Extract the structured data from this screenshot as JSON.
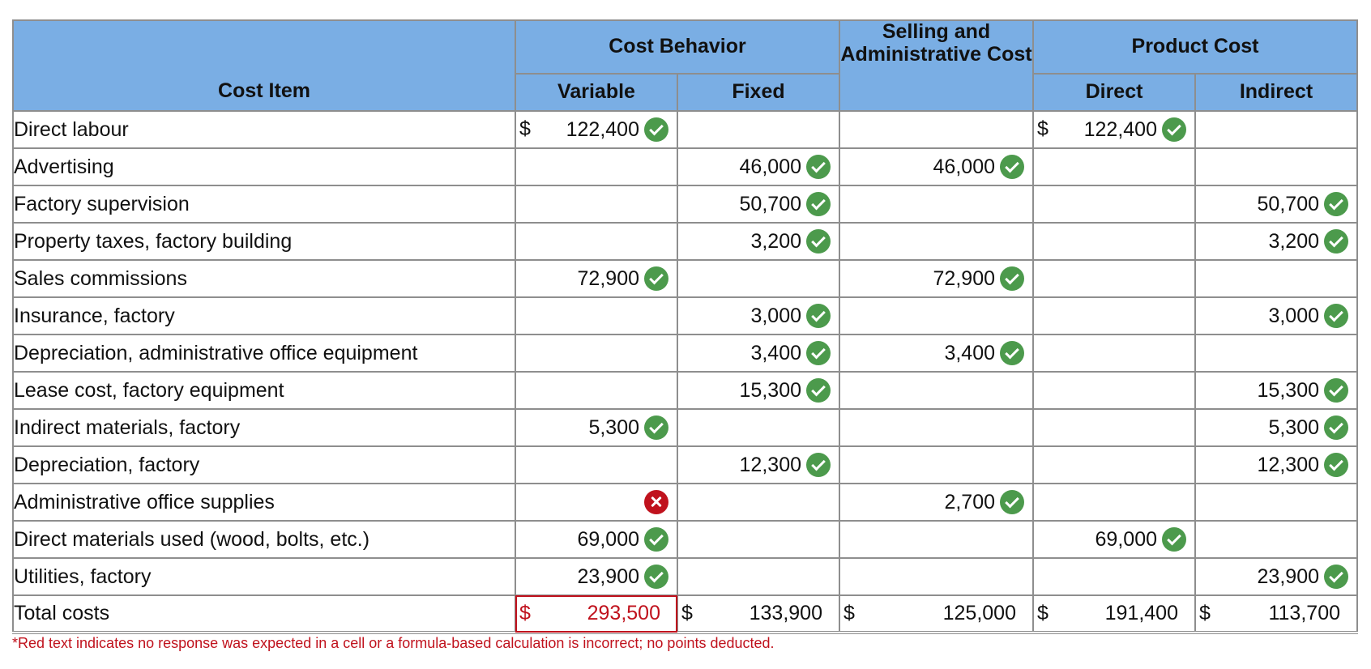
{
  "header": {
    "cost_item": "Cost Item",
    "cost_behavior": "Cost Behavior",
    "variable": "Variable",
    "fixed": "Fixed",
    "selling_admin": "Selling and Administrative Cost",
    "product_cost": "Product Cost",
    "direct": "Direct",
    "indirect": "Indirect"
  },
  "rows": [
    {
      "item": "Direct labour",
      "variable": {
        "value": "122,400",
        "currency": "$",
        "status": "correct"
      },
      "fixed": null,
      "sa": null,
      "direct": {
        "value": "122,400",
        "currency": "$",
        "status": "correct"
      },
      "indirect": null
    },
    {
      "item": "Advertising",
      "variable": null,
      "fixed": {
        "value": "46,000",
        "status": "correct"
      },
      "sa": {
        "value": "46,000",
        "status": "correct"
      },
      "direct": null,
      "indirect": null
    },
    {
      "item": "Factory supervision",
      "variable": null,
      "fixed": {
        "value": "50,700",
        "status": "correct"
      },
      "sa": null,
      "direct": null,
      "indirect": {
        "value": "50,700",
        "status": "correct"
      }
    },
    {
      "item": "Property taxes, factory building",
      "variable": null,
      "fixed": {
        "value": "3,200",
        "status": "correct"
      },
      "sa": null,
      "direct": null,
      "indirect": {
        "value": "3,200",
        "status": "correct"
      }
    },
    {
      "item": "Sales commissions",
      "variable": {
        "value": "72,900",
        "status": "correct"
      },
      "fixed": null,
      "sa": {
        "value": "72,900",
        "status": "correct"
      },
      "direct": null,
      "indirect": null
    },
    {
      "item": "Insurance, factory",
      "variable": null,
      "fixed": {
        "value": "3,000",
        "status": "correct"
      },
      "sa": null,
      "direct": null,
      "indirect": {
        "value": "3,000",
        "status": "correct"
      }
    },
    {
      "item": "Depreciation, administrative office equipment",
      "variable": null,
      "fixed": {
        "value": "3,400",
        "status": "correct"
      },
      "sa": {
        "value": "3,400",
        "status": "correct"
      },
      "direct": null,
      "indirect": null
    },
    {
      "item": "Lease cost, factory equipment",
      "variable": null,
      "fixed": {
        "value": "15,300",
        "status": "correct"
      },
      "sa": null,
      "direct": null,
      "indirect": {
        "value": "15,300",
        "status": "correct"
      }
    },
    {
      "item": "Indirect materials, factory",
      "variable": {
        "value": "5,300",
        "status": "correct"
      },
      "fixed": null,
      "sa": null,
      "direct": null,
      "indirect": {
        "value": "5,300",
        "status": "correct"
      }
    },
    {
      "item": "Depreciation, factory",
      "variable": null,
      "fixed": {
        "value": "12,300",
        "status": "correct"
      },
      "sa": null,
      "direct": null,
      "indirect": {
        "value": "12,300",
        "status": "correct"
      }
    },
    {
      "item": "Administrative office supplies",
      "variable": {
        "value": "",
        "status": "incorrect"
      },
      "fixed": null,
      "sa": {
        "value": "2,700",
        "status": "correct"
      },
      "direct": null,
      "indirect": null
    },
    {
      "item": "Direct materials used (wood, bolts, etc.)",
      "variable": {
        "value": "69,000",
        "status": "correct"
      },
      "fixed": null,
      "sa": null,
      "direct": {
        "value": "69,000",
        "status": "correct"
      },
      "indirect": null
    },
    {
      "item": "Utilities, factory",
      "variable": {
        "value": "23,900",
        "status": "correct"
      },
      "fixed": null,
      "sa": null,
      "direct": null,
      "indirect": {
        "value": "23,900",
        "status": "correct"
      }
    }
  ],
  "totals": {
    "label": "Total costs",
    "variable": {
      "currency": "$",
      "value": "293,500",
      "status": "red"
    },
    "fixed": {
      "currency": "$",
      "value": "133,900"
    },
    "sa": {
      "currency": "$",
      "value": "125,000"
    },
    "direct": {
      "currency": "$",
      "value": "191,400"
    },
    "indirect": {
      "currency": "$",
      "value": "113,700"
    }
  },
  "footnote": "*Red text indicates no response was expected in a cell or a formula-based calculation is incorrect; no points deducted.",
  "colors": {
    "header_bg": "#7aaee4",
    "correct": "#4c9a4c",
    "incorrect": "#c0121d",
    "filled_cell": "#f6f9f2"
  }
}
